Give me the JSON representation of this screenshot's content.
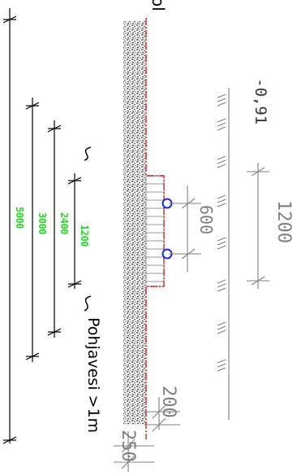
{
  "colors": {
    "dimension_black": "#000000",
    "dimension_green": "#22d822",
    "section_red": "#d41f1f",
    "pipe_blue": "#1a2bd8",
    "gravel_fill": "#222222",
    "annotation_grey": "#808080"
  },
  "labels": {
    "top_fragment": "ol",
    "groundwater_note": "Pohjavesi >1m",
    "level_value": "-0,91"
  },
  "dimensions_green": {
    "width_5000": "5000",
    "width_3000": "3000",
    "width_2400": "2400",
    "width_1200": "1200"
  },
  "dimensions_grey": {
    "trench_1200": "1200",
    "pipe_spacing_600": "600",
    "edge_200": "200",
    "edge_250": "250"
  },
  "icons": {
    "break_top": "s-break-icon",
    "break_bottom": "s-break-icon",
    "pipe_top": "drain-pipe-icon",
    "pipe_bottom": "drain-pipe-icon"
  }
}
